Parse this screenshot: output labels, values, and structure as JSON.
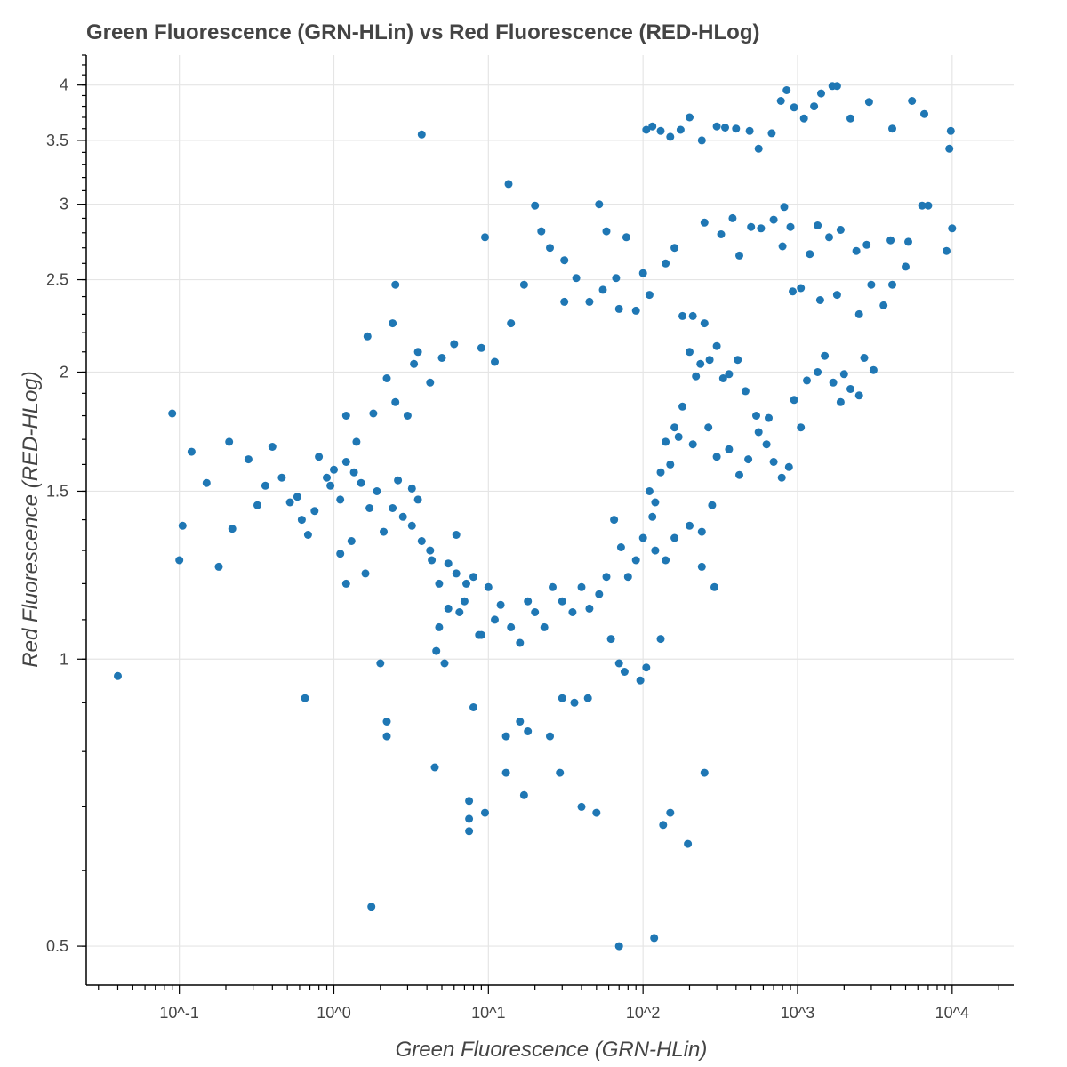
{
  "chart_data": {
    "type": "scatter",
    "title": "Green Fluorescence (GRN-HLin) vs Red Fluorescence (RED-HLog)",
    "xlabel": "Green Fluorescence (GRN-HLin)",
    "ylabel": "Red Fluorescence (RED-HLog)",
    "x_scale": "log",
    "y_scale": "log",
    "xlim": [
      0.025,
      25000
    ],
    "ylim": [
      0.455,
      4.3
    ],
    "x_ticks": [
      {
        "value": 0.1,
        "label": "10^-1"
      },
      {
        "value": 1,
        "label": "10^0"
      },
      {
        "value": 10,
        "label": "10^1"
      },
      {
        "value": 100,
        "label": "10^2"
      },
      {
        "value": 1000,
        "label": "10^3"
      },
      {
        "value": 10000,
        "label": "10^4"
      }
    ],
    "y_ticks": [
      {
        "value": 0.5,
        "label": "0.5"
      },
      {
        "value": 1,
        "label": "1"
      },
      {
        "value": 1.5,
        "label": "1.5"
      },
      {
        "value": 2,
        "label": "2"
      },
      {
        "value": 2.5,
        "label": "2.5"
      },
      {
        "value": 3,
        "label": "3"
      },
      {
        "value": 3.5,
        "label": "3.5"
      },
      {
        "value": 4,
        "label": "4"
      }
    ],
    "grid": true,
    "marker_color": "#1f77b4",
    "series": [
      {
        "points": [
          [
            0.04,
            0.96
          ],
          [
            0.09,
            1.81
          ],
          [
            0.12,
            1.65
          ],
          [
            0.1,
            1.27
          ],
          [
            0.105,
            1.38
          ],
          [
            0.15,
            1.53
          ],
          [
            0.18,
            1.25
          ],
          [
            0.21,
            1.69
          ],
          [
            0.65,
            0.91
          ],
          [
            3.7,
            3.55
          ],
          [
            2.5,
            2.47
          ],
          [
            1.75,
            0.55
          ],
          [
            9.5,
            2.77
          ],
          [
            13.5,
            3.15
          ],
          [
            20,
            2.99
          ],
          [
            2,
            0.99
          ],
          [
            2.2,
            0.86
          ],
          [
            2.2,
            0.83
          ],
          [
            4.5,
            0.77
          ],
          [
            7.5,
            0.71
          ],
          [
            7.5,
            0.68
          ],
          [
            7.5,
            0.66
          ],
          [
            9.5,
            0.69
          ],
          [
            13,
            0.76
          ],
          [
            17,
            0.72
          ],
          [
            29,
            0.76
          ],
          [
            40,
            0.7
          ],
          [
            50,
            0.69
          ],
          [
            70,
            0.5
          ],
          [
            118,
            0.51
          ],
          [
            135,
            0.67
          ],
          [
            150,
            0.69
          ],
          [
            195,
            0.64
          ],
          [
            250,
            0.76
          ],
          [
            240,
            1.25
          ],
          [
            290,
            1.19
          ],
          [
            130,
            1.05
          ],
          [
            76,
            0.97
          ],
          [
            96,
            0.95
          ],
          [
            105,
            0.98
          ],
          [
            18,
            0.84
          ],
          [
            25,
            0.83
          ],
          [
            16,
            0.86
          ],
          [
            13,
            0.83
          ],
          [
            8,
            0.89
          ],
          [
            36,
            0.9
          ],
          [
            44,
            0.91
          ],
          [
            30,
            0.91
          ],
          [
            62,
            1.05
          ],
          [
            70,
            0.99
          ],
          [
            0.22,
            1.37
          ],
          [
            0.28,
            1.62
          ],
          [
            0.32,
            1.45
          ],
          [
            0.4,
            1.67
          ],
          [
            0.36,
            1.52
          ],
          [
            0.46,
            1.55
          ],
          [
            0.52,
            1.46
          ],
          [
            0.62,
            1.4
          ],
          [
            0.75,
            1.43
          ],
          [
            0.68,
            1.35
          ],
          [
            0.58,
            1.48
          ],
          [
            0.8,
            1.63
          ],
          [
            1.1,
            1.29
          ],
          [
            1.3,
            1.33
          ],
          [
            1.2,
            1.2
          ],
          [
            1.6,
            1.23
          ],
          [
            0.9,
            1.55
          ],
          [
            2.6,
            1.54
          ],
          [
            3.2,
            1.51
          ],
          [
            3.5,
            1.47
          ],
          [
            4.2,
            1.3
          ],
          [
            4.8,
            1.08
          ],
          [
            5.5,
            1.13
          ],
          [
            4.6,
            1.02
          ],
          [
            5.2,
            0.99
          ],
          [
            6.5,
            1.12
          ],
          [
            7.2,
            1.2
          ],
          [
            8.7,
            1.06
          ],
          [
            6.2,
            1.35
          ],
          [
            3,
            1.8
          ],
          [
            2.5,
            1.86
          ],
          [
            1.8,
            1.81
          ],
          [
            1.2,
            1.8
          ],
          [
            1.4,
            1.69
          ],
          [
            2.2,
            1.97
          ],
          [
            3.3,
            2.04
          ],
          [
            4.2,
            1.95
          ],
          [
            1.65,
            2.18
          ],
          [
            2.4,
            2.25
          ],
          [
            3.5,
            2.1
          ],
          [
            5,
            2.07
          ],
          [
            6,
            2.14
          ],
          [
            9,
            2.12
          ],
          [
            11,
            2.05
          ],
          [
            14,
            2.25
          ],
          [
            17,
            2.47
          ],
          [
            22,
            2.81
          ],
          [
            31,
            2.62
          ],
          [
            25,
            2.7
          ],
          [
            52,
            3.0
          ],
          [
            58,
            2.81
          ],
          [
            67,
            2.51
          ],
          [
            78,
            2.77
          ],
          [
            37,
            2.51
          ],
          [
            31,
            2.37
          ],
          [
            45,
            2.37
          ],
          [
            55,
            2.44
          ],
          [
            70,
            2.33
          ],
          [
            90,
            2.32
          ],
          [
            100,
            2.54
          ],
          [
            110,
            2.41
          ],
          [
            140,
            2.6
          ],
          [
            160,
            2.7
          ],
          [
            180,
            2.29
          ],
          [
            210,
            2.29
          ],
          [
            250,
            2.25
          ],
          [
            105,
            3.59
          ],
          [
            115,
            3.62
          ],
          [
            130,
            3.58
          ],
          [
            150,
            3.53
          ],
          [
            175,
            3.59
          ],
          [
            200,
            3.7
          ],
          [
            240,
            3.5
          ],
          [
            300,
            3.62
          ],
          [
            340,
            3.61
          ],
          [
            400,
            3.6
          ],
          [
            490,
            3.58
          ],
          [
            560,
            3.43
          ],
          [
            680,
            3.56
          ],
          [
            780,
            3.85
          ],
          [
            850,
            3.95
          ],
          [
            950,
            3.79
          ],
          [
            1100,
            3.69
          ],
          [
            1280,
            3.8
          ],
          [
            1420,
            3.92
          ],
          [
            1680,
            3.99
          ],
          [
            1800,
            3.99
          ],
          [
            2200,
            3.69
          ],
          [
            2900,
            3.84
          ],
          [
            4100,
            3.6
          ],
          [
            5500,
            3.85
          ],
          [
            6600,
            3.73
          ],
          [
            9800,
            3.58
          ],
          [
            9600,
            3.43
          ],
          [
            9200,
            2.68
          ],
          [
            10000,
            2.83
          ],
          [
            7000,
            2.99
          ],
          [
            6400,
            2.99
          ],
          [
            5200,
            2.74
          ],
          [
            4000,
            2.75
          ],
          [
            2800,
            2.72
          ],
          [
            2400,
            2.68
          ],
          [
            1900,
            2.82
          ],
          [
            1600,
            2.77
          ],
          [
            1350,
            2.85
          ],
          [
            1200,
            2.66
          ],
          [
            900,
            2.84
          ],
          [
            820,
            2.98
          ],
          [
            700,
            2.89
          ],
          [
            580,
            2.83
          ],
          [
            500,
            2.84
          ],
          [
            420,
            2.65
          ],
          [
            380,
            2.9
          ],
          [
            320,
            2.79
          ],
          [
            250,
            2.87
          ],
          [
            800,
            2.71
          ],
          [
            930,
            2.43
          ],
          [
            1050,
            2.45
          ],
          [
            1400,
            2.38
          ],
          [
            1800,
            2.41
          ],
          [
            2500,
            2.3
          ],
          [
            3000,
            2.47
          ],
          [
            3600,
            2.35
          ],
          [
            4100,
            2.47
          ],
          [
            5000,
            2.58
          ],
          [
            1150,
            1.96
          ],
          [
            1350,
            2.0
          ],
          [
            1500,
            2.08
          ],
          [
            1700,
            1.95
          ],
          [
            2000,
            1.99
          ],
          [
            2200,
            1.92
          ],
          [
            2700,
            2.07
          ],
          [
            3100,
            2.01
          ],
          [
            2500,
            1.89
          ],
          [
            1900,
            1.86
          ],
          [
            950,
            1.87
          ],
          [
            1050,
            1.75
          ],
          [
            880,
            1.59
          ],
          [
            790,
            1.55
          ],
          [
            650,
            1.79
          ],
          [
            540,
            1.8
          ],
          [
            460,
            1.91
          ],
          [
            410,
            2.06
          ],
          [
            360,
            1.99
          ],
          [
            330,
            1.97
          ],
          [
            300,
            2.13
          ],
          [
            270,
            2.06
          ],
          [
            235,
            2.04
          ],
          [
            220,
            1.98
          ],
          [
            200,
            2.1
          ],
          [
            180,
            1.84
          ],
          [
            170,
            1.71
          ],
          [
            160,
            1.75
          ],
          [
            150,
            1.6
          ],
          [
            140,
            1.69
          ],
          [
            130,
            1.57
          ],
          [
            120,
            1.46
          ],
          [
            115,
            1.41
          ],
          [
            110,
            1.5
          ],
          [
            210,
            1.68
          ],
          [
            265,
            1.75
          ],
          [
            300,
            1.63
          ],
          [
            360,
            1.66
          ],
          [
            420,
            1.56
          ],
          [
            480,
            1.62
          ],
          [
            560,
            1.73
          ],
          [
            630,
            1.68
          ],
          [
            700,
            1.61
          ],
          [
            280,
            1.45
          ],
          [
            240,
            1.36
          ],
          [
            200,
            1.38
          ],
          [
            160,
            1.34
          ],
          [
            140,
            1.27
          ],
          [
            120,
            1.3
          ],
          [
            100,
            1.34
          ],
          [
            90,
            1.27
          ],
          [
            80,
            1.22
          ],
          [
            72,
            1.31
          ],
          [
            65,
            1.4
          ],
          [
            58,
            1.22
          ],
          [
            52,
            1.17
          ],
          [
            45,
            1.13
          ],
          [
            40,
            1.19
          ],
          [
            35,
            1.12
          ],
          [
            30,
            1.15
          ],
          [
            26,
            1.19
          ],
          [
            23,
            1.08
          ],
          [
            20,
            1.12
          ],
          [
            18,
            1.15
          ],
          [
            16,
            1.04
          ],
          [
            14,
            1.08
          ],
          [
            12,
            1.14
          ],
          [
            11,
            1.1
          ],
          [
            10,
            1.19
          ],
          [
            9,
            1.06
          ],
          [
            8,
            1.22
          ],
          [
            7,
            1.15
          ],
          [
            6.2,
            1.23
          ],
          [
            5.5,
            1.26
          ],
          [
            4.8,
            1.2
          ],
          [
            4.3,
            1.27
          ],
          [
            3.7,
            1.33
          ],
          [
            3.2,
            1.38
          ],
          [
            2.8,
            1.41
          ],
          [
            2.4,
            1.44
          ],
          [
            2.1,
            1.36
          ],
          [
            1.9,
            1.5
          ],
          [
            1.7,
            1.44
          ],
          [
            1.5,
            1.53
          ],
          [
            1.35,
            1.57
          ],
          [
            1.2,
            1.61
          ],
          [
            1.1,
            1.47
          ],
          [
            1.0,
            1.58
          ],
          [
            0.95,
            1.52
          ]
        ]
      }
    ]
  }
}
